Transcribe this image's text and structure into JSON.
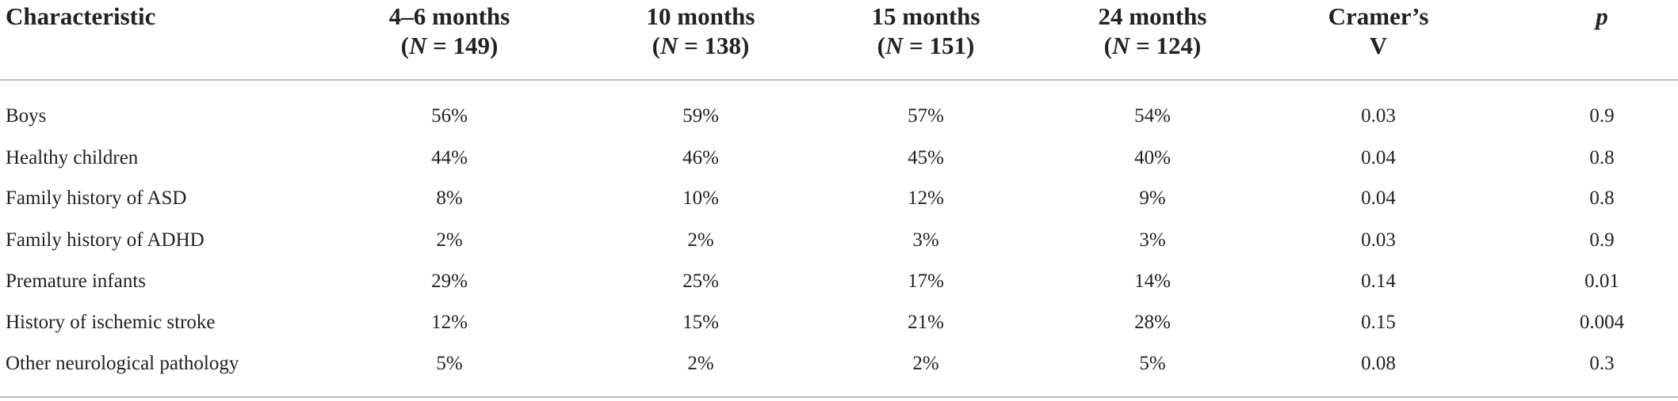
{
  "table": {
    "headers": [
      [
        [
          {
            "t": "Characteristic"
          }
        ]
      ],
      [
        [
          {
            "t": "4–6 months"
          }
        ],
        [
          {
            "t": "("
          },
          {
            "t": "N",
            "i": true
          },
          {
            "t": " = 149)"
          }
        ]
      ],
      [
        [
          {
            "t": "10 months"
          }
        ],
        [
          {
            "t": "("
          },
          {
            "t": "N",
            "i": true
          },
          {
            "t": " = 138)"
          }
        ]
      ],
      [
        [
          {
            "t": "15 months"
          }
        ],
        [
          {
            "t": "("
          },
          {
            "t": "N",
            "i": true
          },
          {
            "t": " = 151)"
          }
        ]
      ],
      [
        [
          {
            "t": "24 months"
          }
        ],
        [
          {
            "t": "("
          },
          {
            "t": "N",
            "i": true
          },
          {
            "t": " = 124)"
          }
        ]
      ],
      [
        [
          {
            "t": "Cramer’s"
          }
        ],
        [
          {
            "t": "V"
          }
        ]
      ],
      [
        [
          {
            "t": "p",
            "i": true
          }
        ]
      ]
    ],
    "rows": [
      [
        "Boys",
        "56%",
        "59%",
        "57%",
        "54%",
        "0.03",
        "0.9"
      ],
      [
        "Healthy children",
        "44%",
        "46%",
        "45%",
        "40%",
        "0.04",
        "0.8"
      ],
      [
        "Family history of ASD",
        "8%",
        "10%",
        "12%",
        "9%",
        "0.04",
        "0.8"
      ],
      [
        "Family history of ADHD",
        "2%",
        "2%",
        "3%",
        "3%",
        "0.03",
        "0.9"
      ],
      [
        "Premature infants",
        "29%",
        "25%",
        "17%",
        "14%",
        "0.14",
        "0.01"
      ],
      [
        "History of ischemic stroke",
        "12%",
        "15%",
        "21%",
        "28%",
        "0.15",
        "0.004"
      ],
      [
        "Other neurological pathology",
        "5%",
        "2%",
        "2%",
        "5%",
        "0.08",
        "0.3"
      ]
    ]
  }
}
